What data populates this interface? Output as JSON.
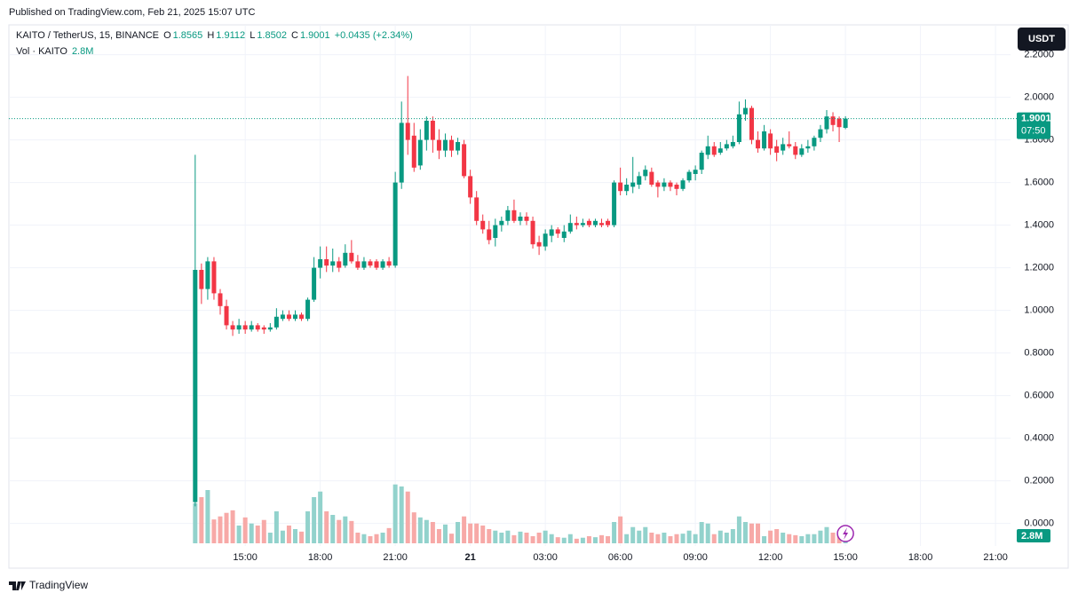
{
  "header": {
    "published": "Published on TradingView.com, Feb 21, 2025 15:07 UTC",
    "currency": "USDT",
    "brand": "TradingView"
  },
  "chart_data": {
    "type": "candlestick",
    "title": "KAITO / TetherUS, 15, BINANCE",
    "ohlc_letters": [
      "O",
      "H",
      "L",
      "C"
    ],
    "change": "+0.0435 (+2.34%)",
    "countdown": "07:50",
    "up_color": "#089981",
    "down_color": "#f23645",
    "x": [
      "2025-02-20T13:00",
      "2025-02-20T13:15",
      "2025-02-20T13:30",
      "2025-02-20T13:45",
      "2025-02-20T14:00",
      "2025-02-20T14:15",
      "2025-02-20T14:30",
      "2025-02-20T14:45",
      "2025-02-20T15:00",
      "2025-02-20T15:15",
      "2025-02-20T15:30",
      "2025-02-20T15:45",
      "2025-02-20T16:00",
      "2025-02-20T16:15",
      "2025-02-20T16:30",
      "2025-02-20T16:45",
      "2025-02-20T17:00",
      "2025-02-20T17:15",
      "2025-02-20T17:30",
      "2025-02-20T17:45",
      "2025-02-20T18:00",
      "2025-02-20T18:15",
      "2025-02-20T18:30",
      "2025-02-20T18:45",
      "2025-02-20T19:00",
      "2025-02-20T19:15",
      "2025-02-20T19:30",
      "2025-02-20T19:45",
      "2025-02-20T20:00",
      "2025-02-20T20:15",
      "2025-02-20T20:30",
      "2025-02-20T20:45",
      "2025-02-20T21:00",
      "2025-02-20T21:15",
      "2025-02-20T21:30",
      "2025-02-20T21:45",
      "2025-02-20T22:00",
      "2025-02-20T22:15",
      "2025-02-20T22:30",
      "2025-02-20T22:45",
      "2025-02-20T23:00",
      "2025-02-20T23:15",
      "2025-02-20T23:30",
      "2025-02-20T23:45",
      "2025-02-21T00:00",
      "2025-02-21T00:15",
      "2025-02-21T00:30",
      "2025-02-21T00:45",
      "2025-02-21T01:00",
      "2025-02-21T01:15",
      "2025-02-21T01:30",
      "2025-02-21T01:45",
      "2025-02-21T02:00",
      "2025-02-21T02:15",
      "2025-02-21T02:30",
      "2025-02-21T02:45",
      "2025-02-21T03:00",
      "2025-02-21T03:15",
      "2025-02-21T03:30",
      "2025-02-21T03:45",
      "2025-02-21T04:00",
      "2025-02-21T04:15",
      "2025-02-21T04:30",
      "2025-02-21T04:45",
      "2025-02-21T05:00",
      "2025-02-21T05:15",
      "2025-02-21T05:30",
      "2025-02-21T05:45",
      "2025-02-21T06:00",
      "2025-02-21T06:15",
      "2025-02-21T06:30",
      "2025-02-21T06:45",
      "2025-02-21T07:00",
      "2025-02-21T07:15",
      "2025-02-21T07:30",
      "2025-02-21T07:45",
      "2025-02-21T08:00",
      "2025-02-21T08:15",
      "2025-02-21T08:30",
      "2025-02-21T08:45",
      "2025-02-21T09:00",
      "2025-02-21T09:15",
      "2025-02-21T09:30",
      "2025-02-21T09:45",
      "2025-02-21T10:00",
      "2025-02-21T10:15",
      "2025-02-21T10:30",
      "2025-02-21T10:45",
      "2025-02-21T11:00",
      "2025-02-21T11:15",
      "2025-02-21T11:30",
      "2025-02-21T11:45",
      "2025-02-21T12:00",
      "2025-02-21T12:15",
      "2025-02-21T12:30",
      "2025-02-21T12:45",
      "2025-02-21T13:00",
      "2025-02-21T13:15",
      "2025-02-21T13:30",
      "2025-02-21T13:45",
      "2025-02-21T14:00",
      "2025-02-21T14:15",
      "2025-02-21T14:30",
      "2025-02-21T14:45",
      "2025-02-21T15:00"
    ],
    "open": [
      0.1,
      1.19,
      1.1,
      1.23,
      1.08,
      1.02,
      0.93,
      0.91,
      0.93,
      0.91,
      0.93,
      0.92,
      0.91,
      0.92,
      0.96,
      0.98,
      0.96,
      0.98,
      0.96,
      1.05,
      1.2,
      1.24,
      1.21,
      1.23,
      1.21,
      1.27,
      1.23,
      1.2,
      1.23,
      1.23,
      1.2,
      1.23,
      1.21,
      1.6,
      1.88,
      1.82,
      1.68,
      1.8,
      1.89,
      1.8,
      1.75,
      1.8,
      1.75,
      1.78,
      1.63,
      1.53,
      1.42,
      1.38,
      1.34,
      1.4,
      1.42,
      1.47,
      1.42,
      1.44,
      1.42,
      1.32,
      1.3,
      1.35,
      1.38,
      1.34,
      1.37,
      1.41,
      1.4,
      1.42,
      1.4,
      1.41,
      1.42,
      1.4,
      1.6,
      1.56,
      1.58,
      1.59,
      1.63,
      1.65,
      1.6,
      1.58,
      1.6,
      1.59,
      1.57,
      1.61,
      1.64,
      1.66,
      1.73,
      1.77,
      1.74,
      1.76,
      1.77,
      1.79,
      1.92,
      1.95,
      1.8,
      1.76,
      1.83,
      1.77,
      1.75,
      1.78,
      1.77,
      1.73,
      1.76,
      1.77,
      1.81,
      1.85,
      1.91,
      1.9,
      1.8565
    ],
    "high": [
      1.73,
      1.22,
      1.25,
      1.25,
      1.1,
      1.05,
      0.95,
      0.96,
      0.95,
      0.95,
      0.94,
      0.93,
      0.94,
      1.01,
      1.0,
      1.0,
      1.0,
      0.99,
      1.06,
      1.25,
      1.3,
      1.3,
      1.29,
      1.25,
      1.31,
      1.33,
      1.26,
      1.25,
      1.24,
      1.24,
      1.24,
      1.25,
      1.65,
      1.98,
      2.1,
      1.88,
      1.85,
      1.91,
      1.91,
      1.85,
      1.83,
      1.82,
      1.81,
      1.8,
      1.66,
      1.56,
      1.45,
      1.42,
      1.43,
      1.44,
      1.49,
      1.52,
      1.46,
      1.46,
      1.44,
      1.35,
      1.38,
      1.4,
      1.39,
      1.4,
      1.45,
      1.44,
      1.43,
      1.43,
      1.43,
      1.43,
      1.43,
      1.61,
      1.67,
      1.62,
      1.72,
      1.65,
      1.68,
      1.67,
      1.61,
      1.62,
      1.61,
      1.6,
      1.62,
      1.66,
      1.68,
      1.75,
      1.82,
      1.79,
      1.79,
      1.8,
      1.82,
      1.98,
      1.99,
      1.96,
      1.84,
      1.87,
      1.85,
      1.8,
      1.81,
      1.84,
      1.79,
      1.78,
      1.8,
      1.82,
      1.87,
      1.94,
      1.93,
      1.91,
      1.9112
    ],
    "low": [
      0.08,
      1.03,
      1.05,
      1.05,
      0.98,
      0.91,
      0.88,
      0.89,
      0.89,
      0.9,
      0.9,
      0.89,
      0.9,
      0.91,
      0.95,
      0.95,
      0.95,
      0.95,
      0.95,
      1.04,
      1.15,
      1.18,
      1.18,
      1.18,
      1.2,
      1.22,
      1.19,
      1.19,
      1.2,
      1.19,
      1.19,
      1.2,
      1.2,
      1.57,
      1.73,
      1.65,
      1.66,
      1.75,
      1.74,
      1.71,
      1.72,
      1.72,
      1.73,
      1.62,
      1.5,
      1.4,
      1.36,
      1.31,
      1.3,
      1.37,
      1.4,
      1.41,
      1.4,
      1.4,
      1.29,
      1.26,
      1.28,
      1.32,
      1.34,
      1.32,
      1.36,
      1.38,
      1.39,
      1.39,
      1.39,
      1.39,
      1.39,
      1.39,
      1.54,
      1.54,
      1.55,
      1.57,
      1.61,
      1.58,
      1.53,
      1.56,
      1.56,
      1.54,
      1.56,
      1.6,
      1.61,
      1.64,
      1.71,
      1.72,
      1.73,
      1.75,
      1.76,
      1.78,
      1.89,
      1.78,
      1.74,
      1.75,
      1.73,
      1.7,
      1.73,
      1.76,
      1.71,
      1.72,
      1.74,
      1.75,
      1.79,
      1.83,
      1.84,
      1.79,
      1.8502
    ],
    "close": [
      1.19,
      1.1,
      1.23,
      1.08,
      1.02,
      0.93,
      0.91,
      0.93,
      0.91,
      0.93,
      0.91,
      0.91,
      0.92,
      0.97,
      0.98,
      0.96,
      0.98,
      0.96,
      1.05,
      1.2,
      1.24,
      1.21,
      1.23,
      1.2,
      1.27,
      1.23,
      1.2,
      1.23,
      1.21,
      1.2,
      1.23,
      1.21,
      1.6,
      1.88,
      1.8,
      1.67,
      1.8,
      1.89,
      1.8,
      1.75,
      1.8,
      1.75,
      1.79,
      1.63,
      1.53,
      1.42,
      1.38,
      1.33,
      1.4,
      1.42,
      1.47,
      1.42,
      1.44,
      1.42,
      1.31,
      1.3,
      1.36,
      1.38,
      1.36,
      1.37,
      1.41,
      1.4,
      1.41,
      1.4,
      1.42,
      1.4,
      1.4,
      1.6,
      1.56,
      1.59,
      1.6,
      1.63,
      1.66,
      1.59,
      1.58,
      1.6,
      1.58,
      1.57,
      1.61,
      1.65,
      1.66,
      1.74,
      1.77,
      1.73,
      1.76,
      1.78,
      1.79,
      1.92,
      1.95,
      1.8,
      1.76,
      1.84,
      1.76,
      1.74,
      1.78,
      1.77,
      1.73,
      1.76,
      1.77,
      1.81,
      1.85,
      1.91,
      1.87,
      1.86,
      1.9001
    ],
    "volume": {
      "name": "Vol · KAITO",
      "up_color": "#92d2cc",
      "down_color": "#f7a9a7",
      "last_label": "2.8M",
      "vlim": [
        0,
        38.5
      ],
      "values": [
        7.9,
        9.1,
        10.5,
        4.7,
        5.3,
        6.0,
        6.5,
        3.5,
        5.1,
        3.9,
        3.5,
        4.6,
        2.1,
        6.3,
        2.5,
        3.5,
        2.8,
        2.3,
        6.3,
        9.1,
        10.2,
        6.3,
        5.6,
        4.6,
        5.3,
        4.4,
        2.1,
        1.8,
        1.4,
        1.8,
        2.1,
        3.0,
        11.6,
        11.2,
        10.2,
        6.1,
        5.1,
        4.6,
        4.2,
        2.8,
        3.7,
        1.9,
        4.2,
        5.3,
        3.9,
        3.9,
        3.5,
        2.8,
        2.5,
        2.1,
        2.5,
        1.6,
        2.3,
        2.1,
        1.4,
        2.1,
        2.5,
        1.8,
        1.2,
        1.1,
        1.8,
        0.9,
        1.1,
        1.4,
        1.2,
        1.6,
        1.4,
        4.2,
        5.3,
        1.8,
        3.2,
        2.5,
        3.2,
        2.1,
        1.8,
        2.1,
        1.4,
        1.8,
        1.9,
        2.5,
        1.8,
        4.2,
        3.9,
        1.8,
        2.5,
        2.1,
        2.8,
        5.3,
        4.2,
        3.9,
        3.9,
        1.4,
        2.5,
        2.8,
        2.1,
        1.8,
        1.6,
        1.4,
        1.8,
        1.8,
        2.5,
        3.2,
        2.1,
        1.8,
        2.8
      ]
    },
    "xlim": [
      "2025-02-20T05:33",
      "2025-02-21T21:36"
    ],
    "xticks": [
      {
        "value": "2025-02-20T15:00",
        "label": "15:00"
      },
      {
        "value": "2025-02-20T18:00",
        "label": "18:00"
      },
      {
        "value": "2025-02-20T21:00",
        "label": "21:00"
      },
      {
        "value": "2025-02-21T00:00",
        "label": "21"
      },
      {
        "value": "2025-02-21T03:00",
        "label": "03:00"
      },
      {
        "value": "2025-02-21T06:00",
        "label": "06:00"
      },
      {
        "value": "2025-02-21T09:00",
        "label": "09:00"
      },
      {
        "value": "2025-02-21T12:00",
        "label": "12:00"
      },
      {
        "value": "2025-02-21T15:00",
        "label": "15:00"
      },
      {
        "value": "2025-02-21T18:00",
        "label": "18:00"
      },
      {
        "value": "2025-02-21T21:00",
        "label": "21:00"
      }
    ],
    "ylim": [
      -0.21,
      2.34
    ],
    "yticks": [
      {
        "value": 0,
        "label": "0.0000"
      },
      {
        "value": 0.2,
        "label": "0.2000"
      },
      {
        "value": 0.4,
        "label": "0.4000"
      },
      {
        "value": 0.6,
        "label": "0.6000"
      },
      {
        "value": 0.8,
        "label": "0.8000"
      },
      {
        "value": 1,
        "label": "1.0000"
      },
      {
        "value": 1.2,
        "label": "1.2000"
      },
      {
        "value": 1.4,
        "label": "1.4000"
      },
      {
        "value": 1.6,
        "label": "1.6000"
      },
      {
        "value": 1.8,
        "label": "1.8000"
      },
      {
        "value": 2,
        "label": "2.0000"
      },
      {
        "value": 2.2,
        "label": "2.2000"
      }
    ],
    "grid": true
  }
}
